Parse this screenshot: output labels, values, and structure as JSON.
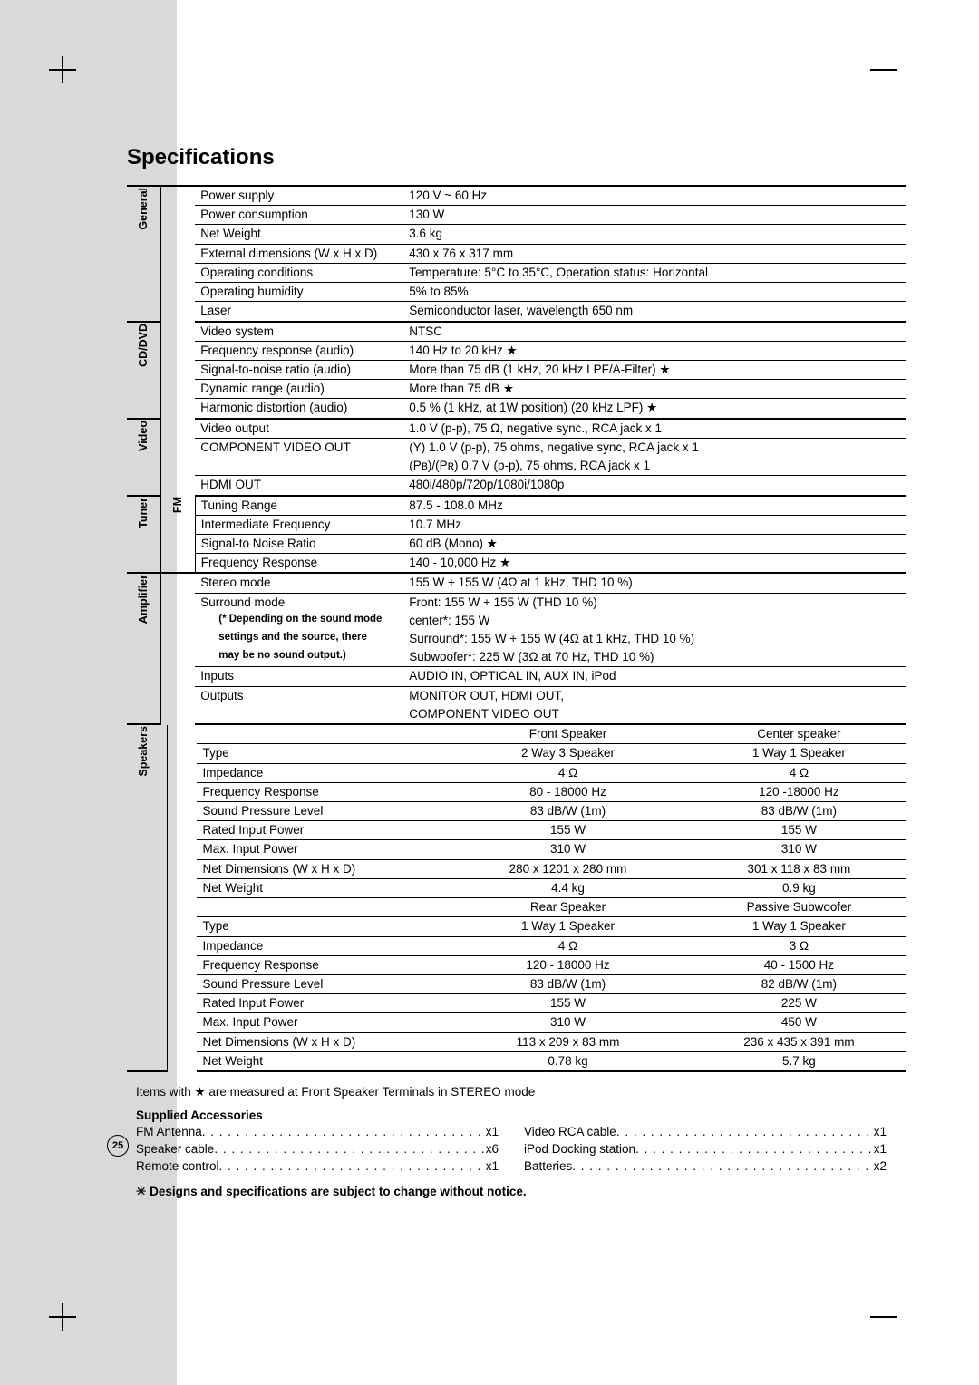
{
  "title": "Specifications",
  "page_number": "25",
  "star": "★",
  "disclaimer_bullet": "✳",
  "footnote": "Items with ★ are measured at Front Speaker Terminals in STEREO mode",
  "disclaimer": "Designs and specifications are subject to change without notice.",
  "accessories_title": "Supplied Accessories",
  "accessories_left": [
    {
      "label": "FM Antenna",
      "qty": "x1"
    },
    {
      "label": "Speaker cable",
      "qty": "x6"
    },
    {
      "label": "Remote control",
      "qty": "x1"
    }
  ],
  "accessories_right": [
    {
      "label": "Video RCA cable",
      "qty": "x1"
    },
    {
      "label": "iPod Docking station",
      "qty": "x1"
    },
    {
      "label": "Batteries",
      "qty": "x2"
    }
  ],
  "cats": {
    "general": "General",
    "cddvd": "CD/DVD",
    "video": "Video",
    "tuner": "Tuner",
    "fm": "FM",
    "amplifier": "Amplifier",
    "speakers": "Speakers"
  },
  "general": [
    {
      "p": "Power supply",
      "v": "120 V ~ 60 Hz"
    },
    {
      "p": "Power consumption",
      "v": "130 W"
    },
    {
      "p": "Net Weight",
      "v": "3.6 kg"
    },
    {
      "p": "External dimensions (W x H x D)",
      "v": "430 x 76 x 317 mm"
    },
    {
      "p": "Operating conditions",
      "v": "Temperature: 5°C to 35°C, Operation status: Horizontal"
    },
    {
      "p": "Operating humidity",
      "v": "5% to 85%"
    },
    {
      "p": "Laser",
      "v": "Semiconductor laser, wavelength 650 nm"
    }
  ],
  "cddvd": [
    {
      "p": "Video system",
      "v": "NTSC"
    },
    {
      "p": "Frequency response (audio)",
      "v": "140 Hz to 20 kHz ★"
    },
    {
      "p": "Signal-to-noise ratio (audio)",
      "v": "More than 75 dB (1 kHz, 20 kHz LPF/A-Filter) ★"
    },
    {
      "p": "Dynamic range (audio)",
      "v": "More than 75 dB ★"
    },
    {
      "p": "Harmonic distortion (audio)",
      "v": "0.5 % (1 kHz, at 1W position) (20 kHz LPF) ★"
    }
  ],
  "video": {
    "r1": {
      "p": "Video output",
      "v": "1.0 V (p-p), 75 Ω, negative sync., RCA jack x 1"
    },
    "r2": {
      "p": "COMPONENT VIDEO OUT",
      "v1": "(Y) 1.0 V (p-p), 75 ohms, negative sync, RCA jack x 1",
      "v2": "(Pʙ)/(Pʀ) 0.7 V (p-p), 75 ohms, RCA jack x 1"
    },
    "r3": {
      "p": "HDMI OUT",
      "v": "480i/480p/720p/1080i/1080p"
    }
  },
  "tuner": [
    {
      "p": "Tuning Range",
      "v": "87.5 - 108.0 MHz"
    },
    {
      "p": "Intermediate Frequency",
      "v": "10.7 MHz"
    },
    {
      "p": "Signal-to Noise Ratio",
      "v": "60 dB (Mono) ★"
    },
    {
      "p": "Frequency Response",
      "v": "140 - 10,000 Hz ★"
    }
  ],
  "amp": {
    "stereo": {
      "p": "Stereo mode",
      "v": "155 W + 155 W (4Ω at 1 kHz, THD 10 %)"
    },
    "surround": {
      "p": "Surround mode",
      "note1": "(* Depending on the sound mode",
      "note2": "settings and the source, there",
      "note3": "may be no sound output.)",
      "v1": "Front: 155 W + 155 W (THD 10 %)",
      "v2": "center*: 155 W",
      "v3": "Surround*: 155 W + 155 W (4Ω at 1 kHz, THD 10 %)",
      "v4": "Subwoofer*: 225 W (3Ω at 70 Hz, THD 10 %)"
    },
    "inputs": {
      "p": "Inputs",
      "v": "AUDIO IN, OPTICAL IN, AUX IN, iPod"
    },
    "outputs": {
      "p": "Outputs",
      "v1": "MONITOR OUT, HDMI OUT,",
      "v2": "COMPONENT VIDEO OUT"
    }
  },
  "speakers": {
    "hdr1": {
      "c1": "Front Speaker",
      "c2": "Center speaker"
    },
    "g1": [
      {
        "p": "Type",
        "c1": "2 Way 3 Speaker",
        "c2": "1 Way 1 Speaker"
      },
      {
        "p": "Impedance",
        "c1": "4 Ω",
        "c2": "4 Ω"
      },
      {
        "p": "Frequency Response",
        "c1": "80 - 18000 Hz",
        "c2": "120 -18000 Hz"
      },
      {
        "p": "Sound Pressure Level",
        "c1": "83 dB/W (1m)",
        "c2": "83 dB/W (1m)"
      },
      {
        "p": "Rated Input Power",
        "c1": "155 W",
        "c2": "155 W"
      },
      {
        "p": "Max. Input Power",
        "c1": "310 W",
        "c2": "310 W"
      },
      {
        "p": "Net Dimensions (W x H x D)",
        "c1": "280 x 1201 x 280 mm",
        "c2": "301 x 118 x 83 mm"
      },
      {
        "p": "Net Weight",
        "c1": "4.4 kg",
        "c2": "0.9 kg"
      }
    ],
    "hdr2": {
      "c1": "Rear Speaker",
      "c2": "Passive Subwoofer"
    },
    "g2": [
      {
        "p": "Type",
        "c1": "1 Way 1 Speaker",
        "c2": "1 Way 1 Speaker"
      },
      {
        "p": "Impedance",
        "c1": "4 Ω",
        "c2": "3 Ω"
      },
      {
        "p": "Frequency Response",
        "c1": "120 - 18000 Hz",
        "c2": "40 - 1500 Hz"
      },
      {
        "p": "Sound Pressure Level",
        "c1": "83 dB/W (1m)",
        "c2": "82 dB/W (1m)"
      },
      {
        "p": "Rated Input Power",
        "c1": "155 W",
        "c2": "225 W"
      },
      {
        "p": "Max. Input Power",
        "c1": "310 W",
        "c2": "450 W"
      },
      {
        "p": "Net Dimensions (W x H x D)",
        "c1": "113 x 209 x 83 mm",
        "c2": "236 x 435 x 391 mm"
      },
      {
        "p": "Net Weight",
        "c1": "0.78 kg",
        "c2": "5.7 kg"
      }
    ]
  }
}
